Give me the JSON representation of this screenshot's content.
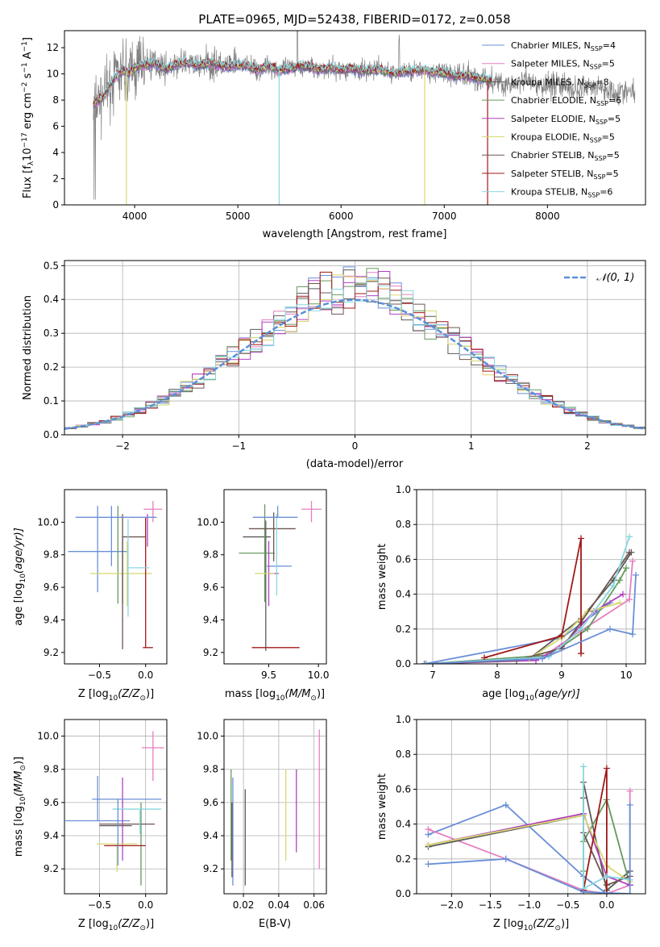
{
  "title": "PLATE=0965, MJD=52438, FIBERID=0172, z=0.058",
  "colors": [
    "#6a8fd8",
    "#e57fbf",
    "#5a5a5a",
    "#66995e",
    "#b040c0",
    "#d8d870",
    "#6e5750",
    "#a01818",
    "#88d8e0"
  ],
  "series_names": [
    {
      "a": "Chabrier MILES, N",
      "b": "SSP",
      "c": "=4"
    },
    {
      "a": "Salpeter MILES, N",
      "b": "SSP",
      "c": "=5"
    },
    {
      "a": "Kroupa MILES, N",
      "b": "SSP",
      "c": "=8"
    },
    {
      "a": "Chabrier ELODIE, N",
      "b": "SSP",
      "c": "=6"
    },
    {
      "a": "Salpeter ELODIE, N",
      "b": "SSP",
      "c": "=5"
    },
    {
      "a": "Kroupa ELODIE, N",
      "b": "SSP",
      "c": "=5"
    },
    {
      "a": "Chabrier STELIB, N",
      "b": "SSP",
      "c": "=5"
    },
    {
      "a": "Salpeter STELIB, N",
      "b": "SSP",
      "c": "=5"
    },
    {
      "a": "Kroupa STELIB, N",
      "b": "SSP",
      "c": "=6"
    }
  ],
  "chart_data": [
    {
      "type": "line",
      "title": "PLATE=0965, MJD=52438, FIBERID=0172, z=0.058",
      "xlabel": "wavelength [Angstrom, rest frame]",
      "ylabel_a": "Flux [f",
      "ylabel_b": "λ",
      "ylabel_c": "10",
      "ylabel_d": "−17",
      "ylabel_e": " erg cm",
      "ylabel_f": "−2",
      "ylabel_g": " s",
      "ylabel_h": "−1",
      "ylabel_i": " A",
      "ylabel_j": "−1",
      "ylabel_k": "]",
      "xlim": [
        3320,
        8950
      ],
      "ylim": [
        0,
        13.3
      ],
      "xticks": [
        4000,
        5000,
        6000,
        7000,
        8000
      ],
      "yticks": [
        0,
        2,
        4,
        6,
        8,
        10,
        12
      ],
      "legend": "upper right",
      "continuum": {
        "x": [
          3600,
          3700,
          3800,
          3900,
          3950,
          4000,
          4100,
          4200,
          4300,
          4400,
          4500,
          4600,
          4700,
          4800,
          4900,
          5000,
          5100,
          5200,
          5300,
          5400,
          5500,
          5600,
          5700,
          5800,
          5900,
          6000,
          6100,
          6200,
          6300,
          6400,
          6500,
          6600,
          6700,
          6800,
          6900,
          7000,
          7100,
          7200,
          7300,
          7400,
          7500,
          7600,
          7700,
          7800,
          7900,
          8000,
          8100,
          8200,
          8300,
          8400,
          8500,
          8600,
          8700,
          8800
        ],
        "y": [
          7.6,
          8.3,
          9.7,
          10.3,
          10.0,
          10.4,
          10.7,
          10.8,
          10.4,
          10.7,
          10.9,
          10.6,
          10.8,
          10.7,
          10.5,
          10.7,
          10.6,
          10.3,
          10.6,
          10.3,
          10.4,
          10.6,
          10.5,
          10.3,
          10.5,
          10.3,
          10.4,
          10.2,
          10.3,
          10.3,
          10.0,
          10.2,
          10.2,
          10.3,
          10.1,
          10.1,
          9.8,
          9.9,
          9.7,
          9.6,
          9.4,
          9.2,
          9.3,
          9.4,
          9.0,
          9.2,
          9.4,
          8.9,
          8.7,
          9.1,
          9.0,
          8.7,
          8.6,
          8.6
        ]
      },
      "observed_range": [
        3600,
        7420
      ]
    },
    {
      "type": "histogram",
      "xlabel": "(data-model)/error",
      "ylabel": "Normed distribution",
      "xlim": [
        -2.5,
        2.5
      ],
      "ylim": [
        0,
        0.515
      ],
      "xticks": [
        -2,
        -1,
        0,
        1,
        2
      ],
      "xticklabels": [
        "−2",
        "−1",
        "0",
        "1",
        "2"
      ],
      "yticks": [
        0.0,
        0.1,
        0.2,
        0.3,
        0.4,
        0.5
      ],
      "legend_label": "𝒩(0, 1)",
      "legend": "upper right",
      "bin_width": 0.1
    },
    {
      "type": "errorbar",
      "xlabel": "Z [log",
      "xlabel_sub": "10",
      "xlabel_rest": "(Z/Z",
      "xlabel_sun": "⊙",
      "xlabel_end": ")]",
      "ylabel": "age  [log",
      "ylabel_sub": "10",
      "ylabel_rest": "(age/yr)]",
      "xlim": [
        -0.88,
        0.23
      ],
      "ylim": [
        9.13,
        10.2
      ],
      "xticks": [
        -0.5,
        0.0
      ],
      "xticklabels": [
        "−0.5",
        "0.0"
      ],
      "yticks": [
        9.2,
        9.4,
        9.6,
        9.8,
        10.0
      ],
      "points": [
        {
          "x": -0.52,
          "xerr": [
            0.32,
            0.33
          ],
          "y": 9.82,
          "yerr": [
            0.25,
            0.28
          ]
        },
        {
          "x": 0.08,
          "xerr": [
            0.1,
            0.1
          ],
          "y": 10.08,
          "yerr": [
            0.08,
            0.05
          ]
        },
        {
          "x": -0.25,
          "xerr": [
            0.0,
            0.0
          ],
          "y": 9.7,
          "yerr": [
            0.2,
            0.2
          ]
        },
        {
          "x": -0.3,
          "xerr": [
            0.0,
            0.0
          ],
          "y": 9.8,
          "yerr": [
            0.3,
            0.3
          ]
        },
        {
          "x": 0.02,
          "xerr": [
            0.0,
            0.0
          ],
          "y": 9.95,
          "yerr": [
            0.1,
            0.1
          ]
        },
        {
          "x": -0.2,
          "xerr": [
            0.4,
            0.27
          ],
          "y": 9.685,
          "yerr": [
            0.2,
            0.2
          ]
        },
        {
          "x": -0.25,
          "xerr": [
            0.0,
            0.25
          ],
          "y": 9.91,
          "yerr": [
            0.69,
            0.14
          ]
        },
        {
          "x": 0.0,
          "xerr": [
            0.03,
            0.08
          ],
          "y": 9.23,
          "yerr": [
            0.0,
            0.8
          ]
        },
        {
          "x": -0.19,
          "xerr": [
            0.0,
            0.23
          ],
          "y": 9.72,
          "yerr": [
            0.3,
            0.3
          ]
        },
        {
          "x": -0.37,
          "xerr": [
            0.39,
            0.49
          ],
          "y": 10.03,
          "yerr": [
            0.3,
            0.07
          ]
        }
      ]
    },
    {
      "type": "errorbar",
      "xlabel": "mass [log",
      "xlabel_sub": "10",
      "xlabel_rest": "(M/M",
      "xlabel_sun": "⊙",
      "xlabel_end": ")]",
      "xlim": [
        9.05,
        10.08
      ],
      "ylim": [
        9.13,
        10.2
      ],
      "xticks": [
        9.5,
        10.0
      ],
      "xticklabels": [
        "9.5",
        "10.0"
      ],
      "yticks": [
        9.2,
        9.4,
        9.6,
        9.8,
        10.0
      ],
      "points": [
        {
          "x": 9.48,
          "xerr": [
            0.0,
            0.25
          ],
          "y": 9.73,
          "yerr": [
            0.0,
            0.0
          ]
        },
        {
          "x": 9.93,
          "xerr": [
            0.1,
            0.1
          ],
          "y": 10.08,
          "yerr": [
            0.08,
            0.05
          ]
        },
        {
          "x": 9.47,
          "xerr": [
            0.23,
            0.05
          ],
          "y": 9.91,
          "yerr": [
            0.7,
            0.1
          ]
        },
        {
          "x": 9.46,
          "xerr": [
            0.26,
            0.1
          ],
          "y": 9.81,
          "yerr": [
            0.3,
            0.3
          ]
        },
        {
          "x": 9.5,
          "xerr": [
            0.0,
            0.1
          ],
          "y": 9.685,
          "yerr": [
            0.2,
            0.2
          ]
        },
        {
          "x": 9.36,
          "xerr": [
            0.0,
            0.2
          ],
          "y": 9.685,
          "yerr": [
            0.0,
            0.0
          ]
        },
        {
          "x": 9.55,
          "xerr": [
            0.25,
            0.22
          ],
          "y": 9.96,
          "yerr": [
            0.2,
            0.1
          ]
        },
        {
          "x": 9.57,
          "xerr": [
            0.24,
            0.24
          ],
          "y": 9.23,
          "yerr": [
            0.0,
            0.0
          ]
        },
        {
          "x": 9.58,
          "xerr": [
            0.0,
            0.0
          ],
          "y": 9.95,
          "yerr": [
            0.4,
            0.1
          ]
        },
        {
          "x": 9.59,
          "xerr": [
            0.25,
            0.2
          ],
          "y": 10.03,
          "yerr": [
            0.0,
            0.07
          ]
        }
      ]
    },
    {
      "type": "line",
      "xlabel": "age  [log",
      "xlabel_sub": "10",
      "xlabel_rest": "(age/yr)]",
      "ylabel": "mass weight",
      "xlim": [
        6.75,
        10.3
      ],
      "ylim": [
        0,
        1.0
      ],
      "xticks": [
        7,
        8,
        9,
        10
      ],
      "yticks": [
        0.0,
        0.2,
        0.4,
        0.6,
        0.8,
        1.0
      ],
      "series": [
        {
          "x": [
            6.87,
            9.0,
            9.75
          ],
          "y": [
            0.0,
            0.15,
            0.35
          ]
        },
        {
          "x": [
            6.9,
            8.7,
            9.3,
            10.05,
            10.1
          ],
          "y": [
            0.0,
            0.04,
            0.19,
            0.37,
            0.59
          ]
        },
        {
          "x": [
            6.87,
            8.5,
            9.3,
            9.8,
            10.08
          ],
          "y": [
            0.0,
            0.03,
            0.26,
            0.48,
            0.64
          ]
        },
        {
          "x": [
            6.9,
            8.8,
            9.4,
            9.9,
            10.0
          ],
          "y": [
            0.0,
            0.05,
            0.2,
            0.48,
            0.55
          ]
        },
        {
          "x": [
            6.9,
            8.6,
            9.0,
            9.5,
            9.95
          ],
          "y": [
            0.0,
            0.02,
            0.1,
            0.3,
            0.4
          ]
        },
        {
          "x": [
            6.9,
            8.5,
            9.0,
            9.4,
            9.9
          ],
          "y": [
            0.0,
            0.03,
            0.15,
            0.3,
            0.35
          ]
        },
        {
          "x": [
            6.87,
            8.3,
            9.0,
            9.3,
            10.05
          ],
          "y": [
            0.0,
            0.02,
            0.09,
            0.24,
            0.64
          ]
        },
        {
          "x": [
            7.8,
            9.0,
            9.3,
            9.3
          ],
          "y": [
            0.035,
            0.16,
            0.72,
            0.06
          ]
        },
        {
          "x": [
            6.9,
            8.8,
            9.3,
            9.8,
            10.05
          ],
          "y": [
            0.0,
            0.04,
            0.2,
            0.45,
            0.73
          ]
        },
        {
          "x": [
            6.87,
            8.7,
            9.75,
            10.1,
            10.15
          ],
          "y": [
            0.0,
            0.03,
            0.2,
            0.17,
            0.51
          ]
        }
      ]
    },
    {
      "type": "errorbar",
      "xlabel": "Z [log",
      "xlabel_sub": "10",
      "xlabel_rest": "(Z/Z",
      "xlabel_sun": "⊙",
      "xlabel_end": ")]",
      "ylabel": "mass [log",
      "ylabel_sub": "10",
      "ylabel_rest": "(M/M",
      "ylabel_sun": "⊙",
      "ylabel_end": ")]",
      "xlim": [
        -0.88,
        0.23
      ],
      "ylim": [
        9.05,
        10.1
      ],
      "xticks": [
        -0.5,
        0.0
      ],
      "xticklabels": [
        "−0.5",
        "0.0"
      ],
      "yticks": [
        9.2,
        9.4,
        9.6,
        9.8,
        10.0
      ],
      "points": [
        {
          "x": -0.52,
          "xerr": [
            0.35,
            0.35
          ],
          "y": 9.49,
          "yerr": [
            0.0,
            0.27
          ]
        },
        {
          "x": 0.08,
          "xerr": [
            0.12,
            0.12
          ],
          "y": 9.93,
          "yerr": [
            0.2,
            0.1
          ]
        },
        {
          "x": -0.25,
          "xerr": [
            0.25,
            0.1
          ],
          "y": 9.46,
          "yerr": [
            0.0,
            0.0
          ]
        },
        {
          "x": -0.05,
          "xerr": [
            0.0,
            0.0
          ],
          "y": 9.45,
          "yerr": [
            0.35,
            0.15
          ]
        },
        {
          "x": -0.25,
          "xerr": [
            0.0,
            0.0
          ],
          "y": 9.55,
          "yerr": [
            0.3,
            0.2
          ]
        },
        {
          "x": -0.31,
          "xerr": [
            0.22,
            0.22
          ],
          "y": 9.35,
          "yerr": [
            0.17,
            0.0
          ]
        },
        {
          "x": -0.2,
          "xerr": [
            0.3,
            0.3
          ],
          "y": 9.47,
          "yerr": [
            0.0,
            0.0
          ]
        },
        {
          "x": -0.18,
          "xerr": [
            0.27,
            0.18
          ],
          "y": 9.34,
          "yerr": [
            0.0,
            0.0
          ]
        },
        {
          "x": -0.06,
          "xerr": [
            0.3,
            0.23
          ],
          "y": 9.56,
          "yerr": [
            0.15,
            0.0
          ]
        },
        {
          "x": -0.3,
          "xerr": [
            0.28,
            0.47
          ],
          "y": 9.62,
          "yerr": [
            0.4,
            0.0
          ]
        }
      ]
    },
    {
      "type": "errorbar",
      "xlabel": "E(B-V)",
      "xlim": [
        0.009,
        0.067
      ],
      "ylim": [
        9.05,
        10.1
      ],
      "xticks": [
        0.02,
        0.04,
        0.06
      ],
      "xticklabels": [
        "0.02",
        "0.04",
        "0.06"
      ],
      "yticks": [
        9.2,
        9.4,
        9.6,
        9.8,
        10.0
      ],
      "points": [
        {
          "x": 0.014,
          "y": 9.35,
          "yerr": [
            0.25,
            0.4
          ]
        },
        {
          "x": 0.063,
          "y": 9.62,
          "yerr": [
            0.42,
            0.42
          ]
        },
        {
          "x": 0.021,
          "y": 9.38,
          "yerr": [
            0.28,
            0.3
          ]
        },
        {
          "x": 0.013,
          "y": 9.55,
          "yerr": [
            0.3,
            0.25
          ]
        },
        {
          "x": 0.05,
          "y": 9.55,
          "yerr": [
            0.25,
            0.25
          ]
        },
        {
          "x": 0.044,
          "y": 9.55,
          "yerr": [
            0.3,
            0.25
          ]
        },
        {
          "x": 0.0135,
          "y": 9.4,
          "yerr": [
            0.25,
            0.2
          ]
        }
      ]
    },
    {
      "type": "line",
      "xlabel": "Z [log",
      "xlabel_sub": "10",
      "xlabel_rest": "(Z/Z",
      "xlabel_sun": "⊙",
      "xlabel_end": ")]",
      "ylabel": "mass weight",
      "xlim": [
        -2.45,
        0.5
      ],
      "ylim": [
        0,
        1.0
      ],
      "xticks": [
        -2.0,
        -1.5,
        -1.0,
        -0.5,
        0.0
      ],
      "xticklabels": [
        "−2.0",
        "−1.5",
        "−1.0",
        "−0.5",
        "0.0"
      ],
      "yticks": [
        0.0,
        0.2,
        0.4,
        0.6,
        0.8,
        1.0
      ],
      "series": [
        {
          "x": [
            -2.3,
            -1.3,
            -0.3,
            0.0
          ],
          "y": [
            0.34,
            0.51,
            0.1,
            0.0
          ]
        },
        {
          "x": [
            -2.3,
            -1.3,
            -0.3,
            0.0,
            0.3,
            0.3
          ],
          "y": [
            0.37,
            0.2,
            0.02,
            0.0,
            0.05,
            0.59
          ]
        },
        {
          "x": [
            -2.3,
            -0.3,
            -0.3,
            0.0,
            0.3
          ],
          "y": [
            0.27,
            0.45,
            0.64,
            0.02,
            0.13
          ]
        },
        {
          "x": [
            -0.3,
            -0.3,
            0.0,
            0.3
          ],
          "y": [
            0.13,
            0.3,
            0.54,
            0.05
          ]
        },
        {
          "x": [
            -2.3,
            -0.3,
            0.0,
            0.3
          ],
          "y": [
            0.28,
            0.46,
            0.1,
            0.05
          ]
        },
        {
          "x": [
            -2.3,
            -0.3,
            0.0,
            0.3
          ],
          "y": [
            0.28,
            0.45,
            0.16,
            0.07
          ]
        },
        {
          "x": [
            -0.3,
            -0.3,
            0.0,
            0.3
          ],
          "y": [
            0.55,
            0.35,
            0.05,
            0.1
          ]
        },
        {
          "x": [
            -0.3,
            0.0,
            0.0
          ],
          "y": [
            0.02,
            0.72,
            0.0
          ]
        },
        {
          "x": [
            -0.3,
            -0.3,
            0.0,
            0.3
          ],
          "y": [
            0.73,
            0.03,
            0.1,
            0.08
          ]
        },
        {
          "x": [
            -2.3,
            -1.3,
            -0.3,
            0.3,
            0.3
          ],
          "y": [
            0.17,
            0.2,
            0.01,
            0.0,
            0.51
          ]
        }
      ]
    }
  ]
}
